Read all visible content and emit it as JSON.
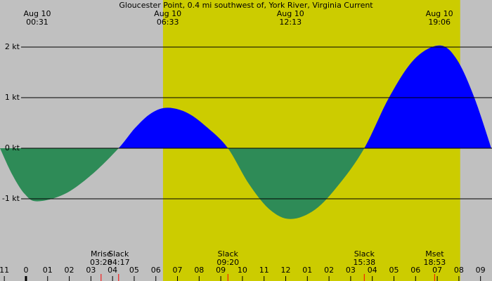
{
  "chart_data": {
    "type": "area",
    "title": "Gloucester Point, 0.4 mi southwest of, York River, Virginia Current",
    "background": "#c0c0c0",
    "daylight": [
      6.33,
      20.06
    ],
    "daylight_color": "#cccc00",
    "flood_color": "#0000ff",
    "ebb_color": "#2e8b57",
    "x": [
      -1.2,
      -0.63,
      -0.05,
      0.52,
      1.77,
      3.03,
      4.28,
      5.04,
      5.79,
      6.55,
      7.48,
      8.4,
      9.33,
      10.29,
      11.26,
      12.22,
      13.36,
      14.49,
      15.63,
      16.79,
      17.94,
      19.1,
      19.9,
      20.7,
      21.5
    ],
    "values": [
      0,
      -0.525,
      -0.909,
      -1.05,
      -0.909,
      -0.525,
      0,
      0.4,
      0.693,
      0.8,
      0.693,
      0.4,
      0,
      -0.7,
      -1.212,
      -1.4,
      -1.212,
      -0.7,
      0,
      1.015,
      1.758,
      2.03,
      1.758,
      1.015,
      0
    ],
    "xlim": [
      -1.2,
      21.53
    ],
    "ylim": [
      -2.625,
      2.93
    ],
    "yticks": [
      {
        "value": 2,
        "label": "2 kt"
      },
      {
        "value": 1,
        "label": "1 kt"
      },
      {
        "value": 0,
        "label": "0 kt"
      },
      {
        "value": -1,
        "label": "-1 kt"
      }
    ],
    "xticks": [
      {
        "value": -1,
        "label": "11"
      },
      0,
      {
        "value": 1,
        "label": "01"
      },
      {
        "value": 2,
        "label": "02"
      },
      {
        "value": 3,
        "label": "03"
      },
      {
        "value": 4,
        "label": "04"
      },
      {
        "value": 5,
        "label": "05"
      },
      {
        "value": 6,
        "label": "06"
      },
      {
        "value": 7,
        "label": "07"
      },
      {
        "value": 8,
        "label": "08"
      },
      {
        "value": 9,
        "label": "09"
      },
      10,
      11,
      12,
      {
        "value": 13,
        "label": "01"
      },
      {
        "value": 14,
        "label": "02"
      },
      {
        "value": 15,
        "label": "03"
      },
      {
        "value": 16,
        "label": "04"
      },
      {
        "value": 17,
        "label": "05"
      },
      {
        "value": 18,
        "label": "06"
      },
      {
        "value": 19,
        "label": "07"
      },
      {
        "value": 20,
        "label": "08"
      },
      {
        "value": 21,
        "label": "09"
      }
    ],
    "top_events": [
      {
        "date": "Aug 10",
        "time": "00:31",
        "hour": 0.52
      },
      {
        "date": "Aug 10",
        "time": "06:33",
        "hour": 6.55
      },
      {
        "date": "Aug 10",
        "time": "12:13",
        "hour": 12.22
      },
      {
        "date": "Aug 10",
        "time": "19:06",
        "hour": 19.1
      }
    ],
    "bottom_events": [
      {
        "name": "Mrise",
        "time": "03:28",
        "hour": 3.47
      },
      {
        "name": "Slack",
        "time": "04:17",
        "hour": 4.28
      },
      {
        "name": "Slack",
        "time": "09:20",
        "hour": 9.33
      },
      {
        "name": "Slack",
        "time": "15:38",
        "hour": 15.63
      },
      {
        "name": "Mset",
        "time": "18:53",
        "hour": 18.88
      }
    ]
  }
}
